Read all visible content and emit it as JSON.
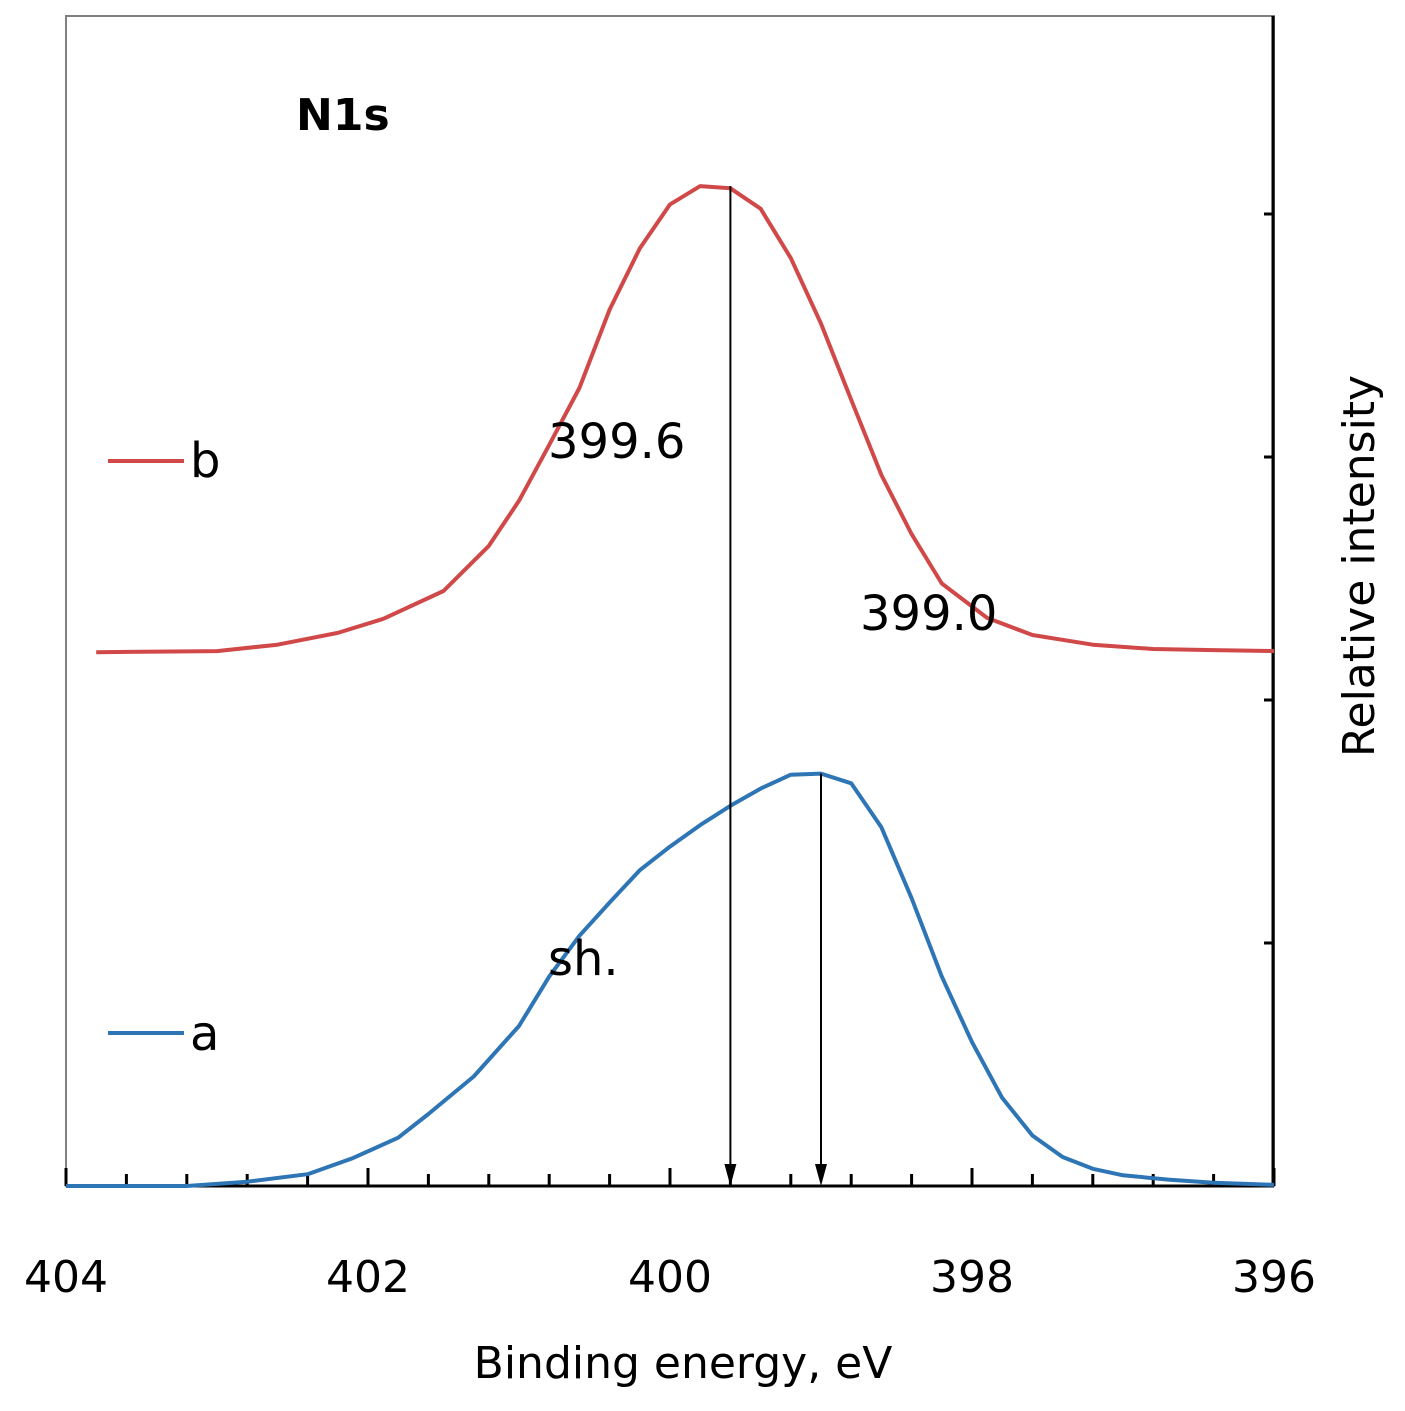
{
  "chart_data": {
    "type": "line",
    "title": "N1s",
    "xlabel": "Binding energy, eV",
    "ylabel": "Relative intensity",
    "xlim": [
      404,
      396
    ],
    "x_reversed": true,
    "ylim": [
      0,
      100
    ],
    "x_ticks": [
      404,
      402,
      400,
      398,
      396
    ],
    "x_tick_labels": [
      "404",
      "402",
      "400",
      "398",
      "396"
    ],
    "grid": false,
    "legend_position": "left",
    "colors": {
      "a": "#2e75b6",
      "b": "#d04848",
      "axis": "#000000",
      "frame": "#808080"
    },
    "series": [
      {
        "name": "b",
        "color": "#d04848",
        "points": [
          [
            403.8,
            49.7
          ],
          [
            403.0,
            49.8
          ],
          [
            402.6,
            50.4
          ],
          [
            402.2,
            51.5
          ],
          [
            401.9,
            52.8
          ],
          [
            401.5,
            55.4
          ],
          [
            401.2,
            59.6
          ],
          [
            401.0,
            63.8
          ],
          [
            400.8,
            69.0
          ],
          [
            400.6,
            74.3
          ],
          [
            400.4,
            81.6
          ],
          [
            400.2,
            87.3
          ],
          [
            400.0,
            91.4
          ],
          [
            399.8,
            93.1
          ],
          [
            399.6,
            92.9
          ],
          [
            399.4,
            91.0
          ],
          [
            399.2,
            86.4
          ],
          [
            399.0,
            80.3
          ],
          [
            398.8,
            73.2
          ],
          [
            398.6,
            66.2
          ],
          [
            398.4,
            60.7
          ],
          [
            398.2,
            56.1
          ],
          [
            397.9,
            52.9
          ],
          [
            397.6,
            51.3
          ],
          [
            397.2,
            50.4
          ],
          [
            396.8,
            50.0
          ],
          [
            396.4,
            49.9
          ],
          [
            396.0,
            49.8
          ]
        ]
      },
      {
        "name": "a",
        "color": "#2e75b6",
        "points": [
          [
            404.0,
            0.0
          ],
          [
            403.2,
            0.0
          ],
          [
            402.8,
            0.4
          ],
          [
            402.4,
            1.1
          ],
          [
            402.1,
            2.6
          ],
          [
            401.8,
            4.5
          ],
          [
            401.6,
            6.7
          ],
          [
            401.3,
            10.2
          ],
          [
            401.0,
            14.9
          ],
          [
            400.8,
            19.5
          ],
          [
            400.6,
            23.3
          ],
          [
            400.4,
            26.4
          ],
          [
            400.2,
            29.4
          ],
          [
            400.0,
            31.6
          ],
          [
            399.8,
            33.6
          ],
          [
            399.6,
            35.4
          ],
          [
            399.4,
            37.0
          ],
          [
            399.2,
            38.3
          ],
          [
            399.0,
            38.4
          ],
          [
            398.8,
            37.5
          ],
          [
            398.6,
            33.4
          ],
          [
            398.4,
            26.8
          ],
          [
            398.2,
            19.5
          ],
          [
            398.0,
            13.4
          ],
          [
            397.8,
            8.2
          ],
          [
            397.6,
            4.7
          ],
          [
            397.4,
            2.7
          ],
          [
            397.2,
            1.6
          ],
          [
            397.0,
            1.0
          ],
          [
            396.7,
            0.6
          ],
          [
            396.4,
            0.3
          ],
          [
            396.0,
            0.1
          ]
        ]
      }
    ],
    "annotations": [
      {
        "label": "399.6",
        "x": 399.6,
        "kind": "peak-marker",
        "arrow_from_y": 93.1,
        "arrow_to_y": 0
      },
      {
        "label": "399.0",
        "x": 399.0,
        "kind": "peak-marker",
        "arrow_from_y": 38.4,
        "arrow_to_y": 0
      },
      {
        "label": "sh.",
        "x": 400.7,
        "y": 17.5,
        "kind": "text"
      }
    ],
    "legend": [
      {
        "name": "b",
        "color": "#d04848"
      },
      {
        "name": "a",
        "color": "#2e75b6"
      }
    ]
  }
}
